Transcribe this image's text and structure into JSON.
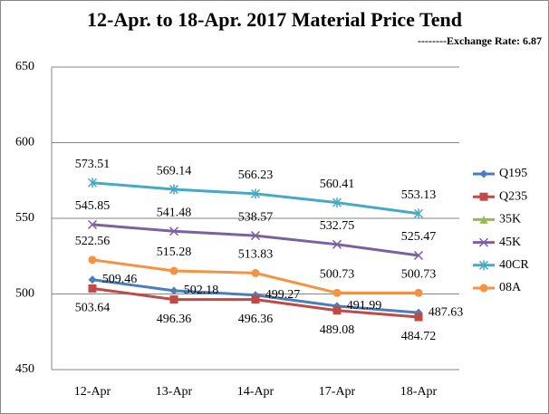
{
  "chart_data": {
    "type": "line",
    "title": "12-Apr. to 18-Apr. 2017 Material Price Tend",
    "subtitle": "--------Exchange Rate: 6.87",
    "categories": [
      "12-Apr",
      "13-Apr",
      "14-Apr",
      "17-Apr",
      "18-Apr"
    ],
    "series": [
      {
        "name": "Q195",
        "color": "#4a7ebb",
        "marker": "diamond",
        "values": [
          509.46,
          502.18,
          499.27,
          491.99,
          487.63
        ]
      },
      {
        "name": "Q235",
        "color": "#be4b48",
        "marker": "square",
        "values": [
          503.64,
          496.36,
          496.36,
          489.08,
          484.72
        ]
      },
      {
        "name": "35K",
        "color": "#98b954",
        "marker": "triangle",
        "values": [
          null,
          null,
          null,
          null,
          null
        ]
      },
      {
        "name": "45K",
        "color": "#7d60a0",
        "marker": "x",
        "values": [
          545.85,
          541.48,
          538.57,
          532.75,
          525.47
        ]
      },
      {
        "name": "40CR",
        "color": "#46aac5",
        "marker": "star",
        "values": [
          573.51,
          569.14,
          566.23,
          560.41,
          553.13
        ]
      },
      {
        "name": "08A",
        "color": "#f69240",
        "marker": "circle",
        "values": [
          522.56,
          515.28,
          513.83,
          500.73,
          500.73
        ]
      }
    ],
    "ylim": [
      450,
      650
    ],
    "yticks": [
      450,
      500,
      550,
      600,
      650
    ],
    "grid": true
  }
}
